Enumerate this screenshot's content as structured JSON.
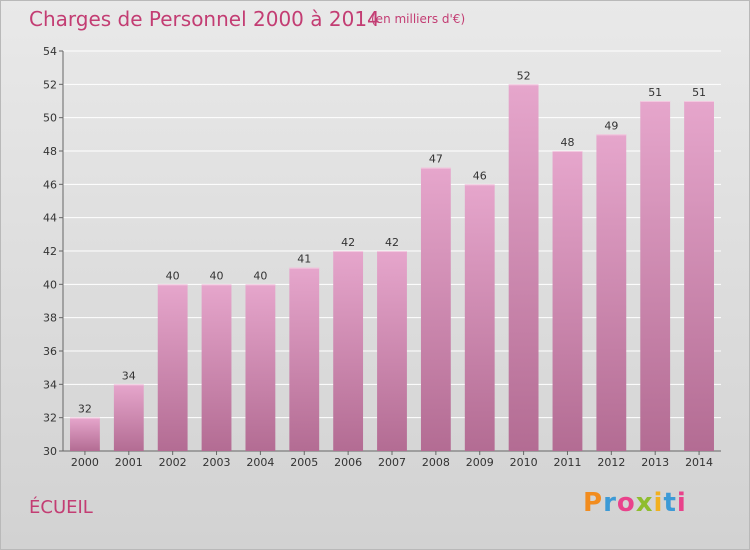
{
  "header": {
    "title": "Charges de Personnel 2000 à 2014",
    "subtitle": "(en milliers d'€)"
  },
  "footer": {
    "place": "ÉCUEIL",
    "logo": [
      "P",
      "r",
      "o",
      "x",
      "i",
      "t",
      "i"
    ]
  },
  "colors": {
    "title": "#c33d73",
    "bar_top": "#e6a6cc",
    "bar_bottom": "#b36c93",
    "logo_letters": [
      "#f28c1e",
      "#3c9ad6",
      "#e9428b",
      "#8fbd2e",
      "#f2b01e",
      "#3c9ad6",
      "#e9428b"
    ]
  },
  "chart_data": {
    "type": "bar",
    "categories": [
      "2000",
      "2001",
      "2002",
      "2003",
      "2004",
      "2005",
      "2006",
      "2007",
      "2008",
      "2009",
      "2010",
      "2011",
      "2012",
      "2013",
      "2014"
    ],
    "values": [
      32,
      34,
      40,
      40,
      40,
      41,
      42,
      42,
      47,
      46,
      52,
      48,
      49,
      51,
      51
    ],
    "title": "Charges de Personnel 2000 à 2014",
    "subtitle": "(en milliers d'€)",
    "xlabel": "",
    "ylabel": "",
    "ylim": [
      30,
      54
    ],
    "yticks": [
      30,
      32,
      34,
      36,
      38,
      40,
      42,
      44,
      46,
      48,
      50,
      52,
      54
    ],
    "grid": true,
    "legend": "none"
  }
}
